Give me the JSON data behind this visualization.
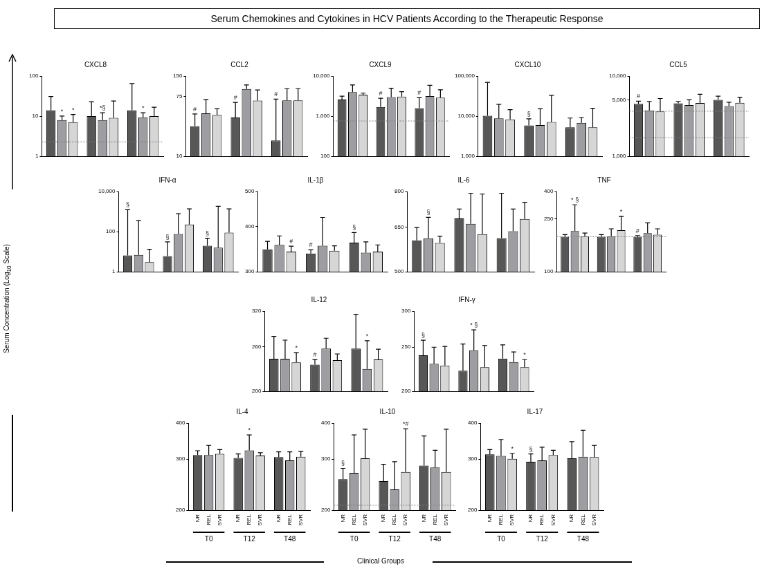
{
  "chart_data": [
    {
      "type": "other",
      "title": "Serum Chemokines and Cytokines in HCV Patients According to the Therapeutic Response",
      "ylabel": "Serum Concentration (Log$_{10}$ Scale)",
      "xlabel": "Clinical Groups"
    },
    {
      "type": "bar",
      "title": "CXCL8",
      "categories": [
        null,
        null,
        null
      ],
      "log": true,
      "ylim": [
        1,
        100
      ],
      "yticks": [
        1,
        10,
        100
      ],
      "tick_labels": "y",
      "series": [
        {
          "color": "#575757",
          "values": [
            14.1,
            10,
            14.1
          ],
          "errors": [
            [
              14.1,
              31
            ],
            [
              10,
              23
            ],
            [
              14.1,
              65
            ]
          ]
        },
        {
          "color": "#9e9ea2",
          "values": [
            8,
            8,
            9.4
          ],
          "errors": [
            [
              8,
              10.1
            ],
            [
              8,
              12.2
            ],
            [
              9.4,
              12.2
            ]
          ]
        },
        {
          "color": "#d6d6d6",
          "values": [
            7.1,
            9.1,
            10
          ],
          "errors": [
            [
              7.1,
              11
            ],
            [
              9.1,
              23.8
            ],
            [
              10,
              16.7
            ]
          ]
        }
      ],
      "ref_lines": [
        {
          "axis": "y",
          "value": 2.3,
          "color": "#808080",
          "line_style": "dotted"
        }
      ],
      "annotations": [
        "*",
        "*",
        "*§",
        "*"
      ]
    },
    {
      "type": "bar",
      "title": "CCL2",
      "categories": [
        null,
        null,
        null
      ],
      "log": true,
      "ylim": [
        10,
        150
      ],
      "yticks": [
        10,
        75,
        150
      ],
      "tick_labels": "y",
      "series": [
        {
          "color": "#575757",
          "values": [
            27.7,
            37.1,
            17.1
          ],
          "errors": [
            [
              27.7,
              41.8
            ],
            [
              37.1,
              61.8
            ],
            [
              17.1,
              68.9
            ]
          ]
        },
        {
          "color": "#9e9ea2",
          "values": [
            42.5,
            97,
            66.1
          ],
          "errors": [
            [
              42.5,
              67.8
            ],
            [
              97,
              111
            ],
            [
              66.1,
              98
            ]
          ]
        },
        {
          "color": "#d6d6d6",
          "values": [
            40.4,
            65.6,
            66.1
          ],
          "errors": [
            [
              40.4,
              49.8
            ],
            [
              65.6,
              94
            ],
            [
              66.1,
              98
            ]
          ]
        }
      ],
      "annotations": [
        "#",
        "#",
        "#"
      ]
    },
    {
      "type": "bar",
      "title": "CXCL9",
      "categories": [
        null,
        null,
        null
      ],
      "log": true,
      "ylim": [
        100,
        10000
      ],
      "yticks": [
        100,
        {
          "value": 1000,
          "label": "1,000"
        },
        {
          "value": 10000,
          "label": "10,000"
        }
      ],
      "tick_labels": "y",
      "series": [
        {
          "color": "#575757",
          "values": [
            2590,
            1690,
            1580
          ],
          "errors": [
            [
              2590,
              3160
            ],
            [
              1690,
              2800
            ],
            [
              1580,
              2890
            ]
          ]
        },
        {
          "color": "#9e9ea2",
          "values": [
            3970,
            2980,
            3170
          ],
          "errors": [
            [
              3970,
              5990
            ],
            [
              2980,
              4980
            ],
            [
              3170,
              5900
            ]
          ]
        },
        {
          "color": "#d6d6d6",
          "values": [
            3440,
            3080,
            2890
          ],
          "errors": [
            [
              3440,
              3750
            ],
            [
              3080,
              4070
            ],
            [
              2890,
              4540
            ]
          ]
        }
      ],
      "ref_lines": [
        {
          "axis": "y",
          "value": 760,
          "color": "#808080",
          "line_style": "dotted"
        }
      ],
      "annotations": [
        "#",
        "#"
      ]
    },
    {
      "type": "bar",
      "title": "CXCL10",
      "categories": [
        null,
        null,
        null
      ],
      "log": true,
      "ylim": [
        1000,
        100000
      ],
      "yticks": [
        {
          "value": 1000,
          "label": "1,000"
        },
        {
          "value": 10000,
          "label": "10,000"
        },
        {
          "value": 100000,
          "label": "100,000"
        }
      ],
      "tick_labels": "y",
      "series": [
        {
          "color": "#575757",
          "values": [
            10200,
            5890,
            5290
          ],
          "errors": [
            [
              10200,
              69500
            ],
            [
              5890,
              8590
            ],
            [
              5290,
              9000
            ]
          ]
        },
        {
          "color": "#9e9ea2",
          "values": [
            8860,
            5980,
            6850
          ],
          "errors": [
            [
              8860,
              19800
            ],
            [
              5980,
              15300
            ],
            [
              6850,
              9270
            ]
          ]
        },
        {
          "color": "#d6d6d6",
          "values": [
            8340,
            7170,
            5290
          ],
          "errors": [
            [
              8340,
              14600
            ],
            [
              7170,
              33100
            ],
            [
              5290,
              15700
            ]
          ]
        }
      ],
      "annotations": [
        "§"
      ]
    },
    {
      "type": "bar",
      "title": "CCL5",
      "categories": [
        null,
        null,
        null
      ],
      "log": true,
      "ylim": [
        1000,
        10000
      ],
      "yticks": [
        {
          "value": 1000,
          "label": "1,000"
        },
        {
          "value": 5000,
          "label": "5,000"
        },
        {
          "value": 10000,
          "label": "10,000"
        }
      ],
      "tick_labels": "y",
      "series": [
        {
          "color": "#575757",
          "values": [
            4510,
            4580,
            5060
          ],
          "errors": [
            [
              4510,
              4870
            ],
            [
              4580,
              4830
            ],
            [
              5060,
              5620
            ]
          ]
        },
        {
          "color": "#9e9ea2",
          "values": [
            3740,
            4350,
            4220
          ],
          "errors": [
            [
              3740,
              4830
            ],
            [
              4350,
              5060
            ],
            [
              4220,
              4730
            ]
          ]
        },
        {
          "color": "#d6d6d6",
          "values": [
            3630,
            4620,
            4650
          ],
          "errors": [
            [
              3630,
              5250
            ],
            [
              4620,
              5930
            ],
            [
              4650,
              5450
            ]
          ]
        }
      ],
      "ref_lines": [
        {
          "axis": "y",
          "value": 3650,
          "color": "#808080",
          "line_style": "dotted"
        },
        {
          "axis": "y",
          "value": 1710,
          "color": "#808080",
          "line_style": "dotted"
        }
      ],
      "annotations": [
        "#"
      ]
    },
    {
      "type": "bar",
      "title": "IFN-α",
      "categories": [
        null,
        null,
        null
      ],
      "log": true,
      "ylim": [
        1,
        10000
      ],
      "yticks": [
        1,
        100,
        {
          "value": 10000,
          "label": "10,000"
        }
      ],
      "tick_labels": "y",
      "series": [
        {
          "color": "#575757",
          "values": [
            6.5,
            6,
            20
          ],
          "errors": [
            [
              6.5,
              1230
            ],
            [
              6,
              31
            ],
            [
              20,
              47
            ]
          ]
        },
        {
          "color": "#9e9ea2",
          "values": [
            7,
            77,
            16
          ],
          "errors": [
            [
              7,
              357
            ],
            [
              77,
              784
            ],
            [
              16,
              1850
            ]
          ]
        },
        {
          "color": "#d6d6d6",
          "values": [
            3,
            228,
            89
          ],
          "errors": [
            [
              3,
              13.2
            ],
            [
              228,
              1370
            ],
            [
              89,
              1370
            ]
          ]
        }
      ],
      "annotations": [
        "§",
        "§",
        "§"
      ]
    },
    {
      "type": "bar",
      "title": "IL-1β",
      "categories": [
        null,
        null,
        null
      ],
      "log": true,
      "ylim": [
        300,
        500
      ],
      "yticks": [
        300,
        400,
        500
      ],
      "tick_labels": "y",
      "series": [
        {
          "color": "#575757",
          "values": [
            346,
            337,
            361
          ],
          "errors": [
            [
              346,
              364
            ],
            [
              337,
              345
            ],
            [
              361,
              385
            ]
          ]
        },
        {
          "color": "#9e9ea2",
          "values": [
            356,
            354,
            339
          ],
          "errors": [
            [
              356,
              377
            ],
            [
              354,
              424
            ],
            [
              339,
              363
            ]
          ]
        },
        {
          "color": "#d6d6d6",
          "values": [
            341,
            343,
            341
          ],
          "errors": [
            [
              341,
              353
            ],
            [
              343,
              354
            ],
            [
              341,
              356
            ]
          ]
        }
      ],
      "annotations": [
        "#",
        "#",
        "§"
      ]
    },
    {
      "type": "bar",
      "title": "IL-6",
      "categories": [
        null,
        null,
        null
      ],
      "log": true,
      "ylim": [
        500,
        800
      ],
      "yticks": [
        500,
        650,
        800
      ],
      "tick_labels": "y",
      "series": [
        {
          "color": "#575757",
          "values": [
            601,
            683,
            609
          ],
          "errors": [
            [
              601,
              648
            ],
            [
              683,
              722
            ],
            [
              609,
              792
            ]
          ]
        },
        {
          "color": "#9e9ea2",
          "values": [
            608,
            662,
            634
          ],
          "errors": [
            [
              608,
              688
            ],
            [
              662,
              792
            ],
            [
              634,
              722
            ]
          ]
        },
        {
          "color": "#d6d6d6",
          "values": [
            592,
            623,
            681
          ],
          "errors": [
            [
              592,
              616
            ],
            [
              623,
              788
            ],
            [
              681,
              751
            ]
          ]
        }
      ],
      "annotations": [
        "§"
      ]
    },
    {
      "type": "bar",
      "title": "TNF",
      "categories": [
        null,
        null,
        null
      ],
      "log": true,
      "ylim": [
        100,
        400
      ],
      "yticks": [
        100,
        250,
        400
      ],
      "tick_labels": "y",
      "series": [
        {
          "color": "#575757",
          "values": [
            183,
            183,
            183
          ],
          "errors": [
            [
              183,
              190
            ],
            [
              183,
              190
            ],
            [
              183,
              187
            ]
          ]
        },
        {
          "color": "#9e9ea2",
          "values": [
            202,
            185,
            195
          ],
          "errors": [
            [
              202,
              318
            ],
            [
              185,
              210
            ],
            [
              195,
              233
            ]
          ]
        },
        {
          "color": "#d6d6d6",
          "values": [
            185,
            205,
            190
          ],
          "errors": [
            [
              185,
              195
            ],
            [
              205,
              260
            ],
            [
              190,
              210
            ]
          ]
        }
      ],
      "ref_lines": [
        {
          "axis": "y",
          "value": 183,
          "color": "#808080",
          "line_style": "dotted"
        }
      ],
      "annotations": [
        "* §",
        "*",
        "#"
      ]
    },
    {
      "type": "bar",
      "title": "IL-12",
      "categories": [
        null,
        null,
        null
      ],
      "log": true,
      "ylim": [
        200,
        320
      ],
      "yticks": [
        200,
        260,
        320
      ],
      "tick_labels": "y",
      "series": [
        {
          "color": "#575757",
          "values": [
            242,
            234,
            257
          ],
          "errors": [
            [
              242,
              276
            ],
            [
              234,
              241
            ],
            [
              257,
              314
            ]
          ]
        },
        {
          "color": "#9e9ea2",
          "values": [
            242,
            257,
            228
          ],
          "errors": [
            [
              242,
              270
            ],
            [
              257,
              273
            ],
            [
              228,
              269
            ]
          ]
        },
        {
          "color": "#d6d6d6",
          "values": [
            237,
            240,
            241
          ],
          "errors": [
            [
              237,
              251
            ],
            [
              240,
              249
            ],
            [
              241,
              256
            ]
          ]
        }
      ],
      "annotations": [
        "*",
        "#",
        "*"
      ]
    },
    {
      "type": "bar",
      "title": "IFN-γ",
      "categories": [
        null,
        null,
        null
      ],
      "log": true,
      "ylim": [
        200,
        300
      ],
      "yticks": [
        200,
        250,
        300
      ],
      "tick_labels": "y",
      "series": [
        {
          "color": "#575757",
          "values": [
            240,
            222,
            236
          ],
          "errors": [
            [
              240,
              259
            ],
            [
              222,
              254
            ],
            [
              236,
              253
            ]
          ]
        },
        {
          "color": "#9e9ea2",
          "values": [
            230,
            246,
            232
          ],
          "errors": [
            [
              230,
              250
            ],
            [
              246,
              273
            ],
            [
              232,
              244
            ]
          ]
        },
        {
          "color": "#d6d6d6",
          "values": [
            228,
            226,
            226
          ],
          "errors": [
            [
              228,
              251
            ],
            [
              226,
              252
            ],
            [
              226,
              235
            ]
          ]
        }
      ],
      "annotations": [
        "§",
        "* §",
        "*"
      ]
    },
    {
      "type": "bar",
      "title": "IL-4",
      "categories": [
        "T0",
        "T12",
        "T48"
      ],
      "log": true,
      "ylim": [
        200,
        400
      ],
      "yticks": [
        200,
        300,
        400
      ],
      "series": [
        {
          "name": "NR",
          "color": "#575757",
          "values": [
            310,
            303,
            305
          ],
          "errors": [
            [
              310,
              321
            ],
            [
              303,
              313
            ],
            [
              305,
              318
            ]
          ]
        },
        {
          "name": "REL",
          "color": "#9e9ea2",
          "values": [
            310,
            322,
            297
          ],
          "errors": [
            [
              310,
              335
            ],
            [
              322,
              364
            ],
            [
              297,
              318
            ]
          ]
        },
        {
          "name": "SVR",
          "color": "#d6d6d6",
          "values": [
            313,
            309,
            306
          ],
          "errors": [
            [
              313,
              324
            ],
            [
              309,
              316
            ],
            [
              306,
              319
            ]
          ]
        }
      ],
      "annotations": [
        "*"
      ]
    },
    {
      "type": "bar",
      "title": "IL-10",
      "categories": [
        "T0",
        "T12",
        "T48"
      ],
      "log": true,
      "ylim": [
        200,
        400
      ],
      "yticks": [
        200,
        300,
        400
      ],
      "series": [
        {
          "name": "NR",
          "color": "#575757",
          "values": [
            256,
            252,
            285
          ],
          "errors": [
            [
              256,
              279
            ],
            [
              252,
              288
            ],
            [
              285,
              361
            ]
          ]
        },
        {
          "name": "REL",
          "color": "#9e9ea2",
          "values": [
            269,
            236,
            281
          ],
          "errors": [
            [
              269,
              364
            ],
            [
              236,
              294
            ],
            [
              281,
              322
            ]
          ]
        },
        {
          "name": "SVR",
          "color": "#d6d6d6",
          "values": [
            302,
            271,
            271
          ],
          "errors": [
            [
              302,
              381
            ],
            [
              271,
              382
            ],
            [
              271,
              381
            ]
          ]
        }
      ],
      "ref_lines": [
        {
          "axis": "y",
          "value": 208,
          "color": "#808080",
          "line_style": "dotted"
        }
      ],
      "annotations": [
        "§",
        "*#"
      ]
    },
    {
      "type": "bar",
      "title": "IL-17",
      "categories": [
        "T0",
        "T12",
        "T48"
      ],
      "log": true,
      "ylim": [
        200,
        400
      ],
      "yticks": [
        200,
        300,
        400
      ],
      "series": [
        {
          "name": "NR",
          "color": "#575757",
          "values": [
            312,
            294,
            302
          ],
          "errors": [
            [
              312,
              324
            ],
            [
              294,
              313
            ],
            [
              302,
              345
            ]
          ]
        },
        {
          "name": "REL",
          "color": "#9e9ea2",
          "values": [
            308,
            297,
            306
          ],
          "errors": [
            [
              308,
              351
            ],
            [
              297,
              330
            ],
            [
              306,
              378
            ]
          ]
        },
        {
          "name": "SVR",
          "color": "#d6d6d6",
          "values": [
            301,
            310,
            305
          ],
          "errors": [
            [
              301,
              314
            ],
            [
              310,
              322
            ],
            [
              305,
              335
            ]
          ]
        }
      ],
      "annotations": [
        "*",
        "§"
      ]
    }
  ]
}
